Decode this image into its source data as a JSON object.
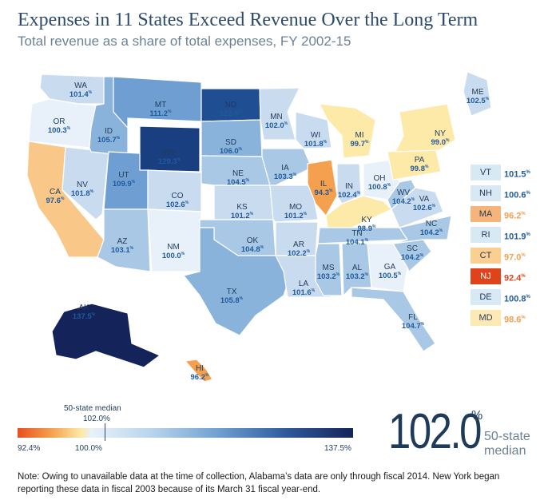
{
  "header": {
    "title": "Expenses in 11 States Exceed Revenue Over the Long Term",
    "subtitle": "Total revenue as a share of total expenses, FY 2002-15"
  },
  "colors": {
    "deficit_high": "#f0a050",
    "deficit_orange": "#f47a2a",
    "deficit_red": "#e0431c",
    "deficit_light": "#fff0b0",
    "surplus_light": "#d9e8f5",
    "surplus_mid": "#8cb8e0",
    "surplus_dark": "#1b4b8c",
    "surplus_darkest": "#14295e"
  },
  "states": [
    {
      "abbr": "WA",
      "value": "101.4"
    },
    {
      "abbr": "OR",
      "value": "100.3"
    },
    {
      "abbr": "CA",
      "value": "97.6"
    },
    {
      "abbr": "NV",
      "value": "101.8"
    },
    {
      "abbr": "ID",
      "value": "105.7"
    },
    {
      "abbr": "MT",
      "value": "111.2"
    },
    {
      "abbr": "WY",
      "value": "129.3"
    },
    {
      "abbr": "UT",
      "value": "109.9"
    },
    {
      "abbr": "AZ",
      "value": "103.1"
    },
    {
      "abbr": "CO",
      "value": "102.6"
    },
    {
      "abbr": "NM",
      "value": "100.0"
    },
    {
      "abbr": "ND",
      "value": "122.9"
    },
    {
      "abbr": "SD",
      "value": "106.0"
    },
    {
      "abbr": "NE",
      "value": "104.5"
    },
    {
      "abbr": "KS",
      "value": "101.2"
    },
    {
      "abbr": "OK",
      "value": "104.8"
    },
    {
      "abbr": "TX",
      "value": "105.8"
    },
    {
      "abbr": "MN",
      "value": "102.0"
    },
    {
      "abbr": "IA",
      "value": "103.3"
    },
    {
      "abbr": "MO",
      "value": "101.2"
    },
    {
      "abbr": "AR",
      "value": "102.2"
    },
    {
      "abbr": "LA",
      "value": "101.6"
    },
    {
      "abbr": "WI",
      "value": "101.8"
    },
    {
      "abbr": "IL",
      "value": "94.3"
    },
    {
      "abbr": "MI",
      "value": "99.7"
    },
    {
      "abbr": "IN",
      "value": "102.4"
    },
    {
      "abbr": "OH",
      "value": "100.8"
    },
    {
      "abbr": "KY",
      "value": "98.9"
    },
    {
      "abbr": "TN",
      "value": "104.1"
    },
    {
      "abbr": "MS",
      "value": "103.2"
    },
    {
      "abbr": "AL",
      "value": "103.2"
    },
    {
      "abbr": "GA",
      "value": "100.5"
    },
    {
      "abbr": "FL",
      "value": "104.7"
    },
    {
      "abbr": "SC",
      "value": "104.2"
    },
    {
      "abbr": "NC",
      "value": "104.2"
    },
    {
      "abbr": "VA",
      "value": "102.6"
    },
    {
      "abbr": "WV",
      "value": "104.2"
    },
    {
      "abbr": "PA",
      "value": "99.8"
    },
    {
      "abbr": "NY",
      "value": "99.0"
    },
    {
      "abbr": "ME",
      "value": "102.5"
    },
    {
      "abbr": "AK",
      "value": "137.5"
    },
    {
      "abbr": "HI",
      "value": "96.2"
    }
  ],
  "northeast": [
    {
      "abbr": "VT",
      "value": "101.5",
      "color": "#d9e8f5"
    },
    {
      "abbr": "NH",
      "value": "100.6",
      "color": "#d9e8f5"
    },
    {
      "abbr": "MA",
      "value": "96.2",
      "color": "#f6b47a"
    },
    {
      "abbr": "RI",
      "value": "101.9",
      "color": "#d9e8f5"
    },
    {
      "abbr": "CT",
      "value": "97.0",
      "color": "#fbcf8f"
    },
    {
      "abbr": "NJ",
      "value": "92.4",
      "color": "#e0431c"
    },
    {
      "abbr": "DE",
      "value": "100.8",
      "color": "#d9e8f5"
    },
    {
      "abbr": "MD",
      "value": "98.6",
      "color": "#fde9b3"
    }
  ],
  "legend": {
    "min_label": "92.4%",
    "mid_label": "100.0%",
    "max_label": "137.5%",
    "median_caption": "50-state median",
    "median_value": "102.0%"
  },
  "median_display": {
    "value": "102.0",
    "unit": "%",
    "caption": "50-state median"
  },
  "note": "Note: Owing to unavailable data at the time of collection, Alabama’s data are only through fiscal 2014. New York began reporting these data in fiscal 2003 because of its March 31 fiscal year-end."
}
